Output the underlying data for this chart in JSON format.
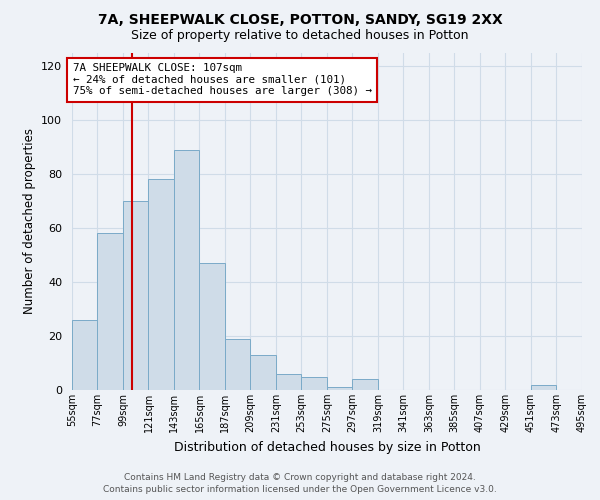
{
  "title1": "7A, SHEEPWALK CLOSE, POTTON, SANDY, SG19 2XX",
  "title2": "Size of property relative to detached houses in Potton",
  "xlabel": "Distribution of detached houses by size in Potton",
  "ylabel": "Number of detached properties",
  "bar_color": "#cfdce8",
  "bar_edge_color": "#7aaac8",
  "bin_edges": [
    55,
    77,
    99,
    121,
    143,
    165,
    187,
    209,
    231,
    253,
    275,
    297,
    319,
    341,
    363,
    385,
    407,
    429,
    451,
    473,
    495
  ],
  "bar_heights": [
    26,
    58,
    70,
    78,
    89,
    47,
    19,
    13,
    6,
    5,
    1,
    4,
    0,
    0,
    0,
    0,
    0,
    0,
    2,
    0
  ],
  "tick_labels": [
    "55sqm",
    "77sqm",
    "99sqm",
    "121sqm",
    "143sqm",
    "165sqm",
    "187sqm",
    "209sqm",
    "231sqm",
    "253sqm",
    "275sqm",
    "297sqm",
    "319sqm",
    "341sqm",
    "363sqm",
    "385sqm",
    "407sqm",
    "429sqm",
    "451sqm",
    "473sqm",
    "495sqm"
  ],
  "property_size": 107,
  "annotation_line1": "7A SHEEPWALK CLOSE: 107sqm",
  "annotation_line2": "← 24% of detached houses are smaller (101)",
  "annotation_line3": "75% of semi-detached houses are larger (308) →",
  "vline_color": "#cc0000",
  "annotation_box_color": "#ffffff",
  "annotation_box_edge": "#cc0000",
  "ylim": [
    0,
    125
  ],
  "yticks": [
    0,
    20,
    40,
    60,
    80,
    100,
    120
  ],
  "footer_line1": "Contains HM Land Registry data © Crown copyright and database right 2024.",
  "footer_line2": "Contains public sector information licensed under the Open Government Licence v3.0.",
  "bg_color": "#eef2f7",
  "grid_color": "#d0dce8"
}
